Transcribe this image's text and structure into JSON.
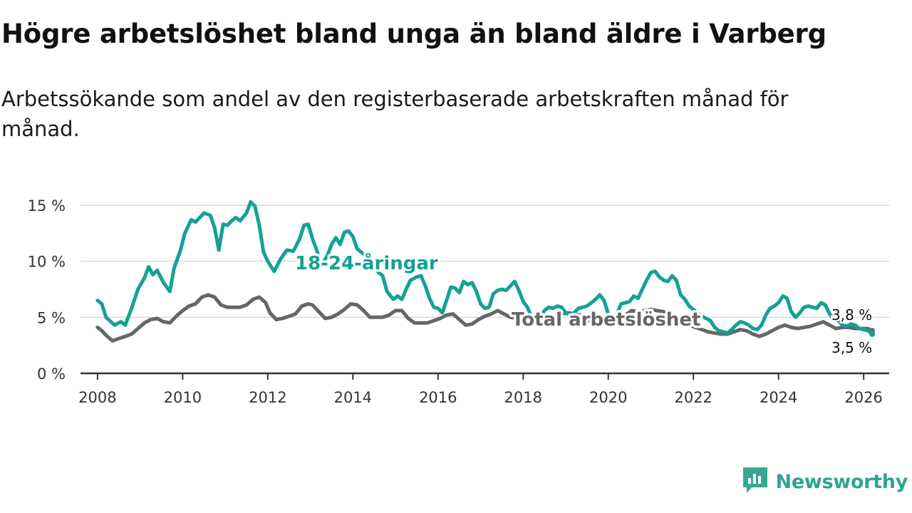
{
  "title": "Högre arbetslöshet bland unga än bland äldre i Varberg",
  "subtitle": "Arbetssökande som andel av den registerbaserade arbetskraften månad för månad.",
  "brand": {
    "name": "Newsworthy",
    "icon": "newsworthy-logo-icon",
    "color": "#3aa795"
  },
  "chart_data": {
    "type": "line",
    "title": "Högre arbetslöshet bland unga än bland äldre i Varberg",
    "xlabel": "",
    "ylabel": "",
    "xlim": [
      2007.6,
      2026.6
    ],
    "ylim": [
      0,
      15
    ],
    "x_ticks": [
      2008,
      2010,
      2012,
      2014,
      2016,
      2018,
      2020,
      2022,
      2024,
      2026
    ],
    "x_tick_labels": [
      "2008",
      "2010",
      "2012",
      "2014",
      "2016",
      "2018",
      "2020",
      "2022",
      "2024",
      "2026"
    ],
    "y_ticks": [
      0,
      5,
      10,
      15
    ],
    "y_tick_labels": [
      "0 %",
      "5 %",
      "10 %",
      "15 %"
    ],
    "grid": true,
    "legend": "none (direct labels)",
    "series": [
      {
        "name": "18-24-åringar",
        "color": "#15a194",
        "end_label": "3,5 %",
        "points": [
          [
            2008.0,
            6.5
          ],
          [
            2008.1,
            6.2
          ],
          [
            2008.2,
            5.0
          ],
          [
            2008.4,
            4.3
          ],
          [
            2008.55,
            4.6
          ],
          [
            2008.65,
            4.3
          ],
          [
            2008.8,
            5.8
          ],
          [
            2008.95,
            7.5
          ],
          [
            2009.1,
            8.5
          ],
          [
            2009.2,
            9.5
          ],
          [
            2009.3,
            8.8
          ],
          [
            2009.4,
            9.2
          ],
          [
            2009.55,
            8.1
          ],
          [
            2009.7,
            7.3
          ],
          [
            2009.8,
            9.4
          ],
          [
            2009.95,
            11.0
          ],
          [
            2010.05,
            12.5
          ],
          [
            2010.2,
            13.7
          ],
          [
            2010.3,
            13.5
          ],
          [
            2010.4,
            13.9
          ],
          [
            2010.5,
            14.3
          ],
          [
            2010.65,
            14.1
          ],
          [
            2010.75,
            13.0
          ],
          [
            2010.85,
            11.0
          ],
          [
            2010.95,
            13.3
          ],
          [
            2011.05,
            13.2
          ],
          [
            2011.15,
            13.6
          ],
          [
            2011.25,
            13.9
          ],
          [
            2011.35,
            13.6
          ],
          [
            2011.5,
            14.3
          ],
          [
            2011.6,
            15.3
          ],
          [
            2011.7,
            14.9
          ],
          [
            2011.8,
            13.2
          ],
          [
            2011.9,
            10.8
          ],
          [
            2012.0,
            10.0
          ],
          [
            2012.15,
            9.1
          ],
          [
            2012.3,
            10.2
          ],
          [
            2012.45,
            11.0
          ],
          [
            2012.6,
            10.9
          ],
          [
            2012.75,
            12.0
          ],
          [
            2012.85,
            13.2
          ],
          [
            2012.95,
            13.3
          ],
          [
            2013.05,
            12.0
          ],
          [
            2013.15,
            11.0
          ],
          [
            2013.25,
            9.6
          ],
          [
            2013.4,
            10.5
          ],
          [
            2013.5,
            11.5
          ],
          [
            2013.6,
            12.1
          ],
          [
            2013.7,
            11.5
          ],
          [
            2013.8,
            12.6
          ],
          [
            2013.9,
            12.7
          ],
          [
            2014.0,
            12.2
          ],
          [
            2014.1,
            11.1
          ],
          [
            2014.2,
            10.8
          ],
          [
            2014.3,
            10.5
          ],
          [
            2014.4,
            9.9
          ],
          [
            2014.5,
            9.6
          ],
          [
            2014.6,
            9.0
          ],
          [
            2014.7,
            8.7
          ],
          [
            2014.8,
            7.3
          ],
          [
            2014.95,
            6.6
          ],
          [
            2015.05,
            6.9
          ],
          [
            2015.15,
            6.6
          ],
          [
            2015.25,
            7.5
          ],
          [
            2015.35,
            8.3
          ],
          [
            2015.5,
            8.6
          ],
          [
            2015.6,
            8.7
          ],
          [
            2015.7,
            7.8
          ],
          [
            2015.8,
            6.7
          ],
          [
            2015.9,
            5.9
          ],
          [
            2016.0,
            5.8
          ],
          [
            2016.1,
            5.4
          ],
          [
            2016.2,
            6.5
          ],
          [
            2016.3,
            7.7
          ],
          [
            2016.4,
            7.6
          ],
          [
            2016.5,
            7.2
          ],
          [
            2016.6,
            8.2
          ],
          [
            2016.7,
            7.9
          ],
          [
            2016.8,
            8.1
          ],
          [
            2016.9,
            7.3
          ],
          [
            2017.0,
            6.2
          ],
          [
            2017.1,
            5.8
          ],
          [
            2017.2,
            5.9
          ],
          [
            2017.3,
            7.1
          ],
          [
            2017.4,
            7.4
          ],
          [
            2017.5,
            7.5
          ],
          [
            2017.6,
            7.4
          ],
          [
            2017.7,
            7.8
          ],
          [
            2017.8,
            8.2
          ],
          [
            2017.9,
            7.4
          ],
          [
            2018.0,
            6.4
          ],
          [
            2018.1,
            5.9
          ],
          [
            2018.2,
            5.0
          ],
          [
            2018.3,
            4.6
          ],
          [
            2018.4,
            5.0
          ],
          [
            2018.5,
            5.6
          ],
          [
            2018.6,
            5.9
          ],
          [
            2018.7,
            5.8
          ],
          [
            2018.8,
            6.0
          ],
          [
            2018.9,
            5.9
          ],
          [
            2019.0,
            5.4
          ],
          [
            2019.1,
            5.2
          ],
          [
            2019.2,
            5.4
          ],
          [
            2019.3,
            5.8
          ],
          [
            2019.4,
            5.9
          ],
          [
            2019.5,
            6.0
          ],
          [
            2019.6,
            6.3
          ],
          [
            2019.7,
            6.6
          ],
          [
            2019.8,
            7.0
          ],
          [
            2019.9,
            6.5
          ],
          [
            2020.0,
            5.3
          ],
          [
            2020.1,
            4.5
          ],
          [
            2020.2,
            5.3
          ],
          [
            2020.3,
            6.2
          ],
          [
            2020.4,
            6.3
          ],
          [
            2020.5,
            6.4
          ],
          [
            2020.6,
            6.9
          ],
          [
            2020.7,
            6.7
          ],
          [
            2020.8,
            7.5
          ],
          [
            2020.9,
            8.3
          ],
          [
            2021.0,
            9.0
          ],
          [
            2021.1,
            9.1
          ],
          [
            2021.2,
            8.6
          ],
          [
            2021.3,
            8.3
          ],
          [
            2021.4,
            8.2
          ],
          [
            2021.5,
            8.7
          ],
          [
            2021.6,
            8.3
          ],
          [
            2021.7,
            7.0
          ],
          [
            2021.8,
            6.6
          ],
          [
            2021.9,
            6.0
          ],
          [
            2022.0,
            5.7
          ],
          [
            2022.2,
            5.1
          ],
          [
            2022.4,
            4.7
          ],
          [
            2022.5,
            4.1
          ],
          [
            2022.6,
            3.8
          ],
          [
            2022.7,
            3.7
          ],
          [
            2022.8,
            3.6
          ],
          [
            2022.9,
            3.9
          ],
          [
            2023.0,
            4.3
          ],
          [
            2023.1,
            4.6
          ],
          [
            2023.2,
            4.5
          ],
          [
            2023.3,
            4.3
          ],
          [
            2023.4,
            4.0
          ],
          [
            2023.5,
            3.9
          ],
          [
            2023.6,
            4.3
          ],
          [
            2023.7,
            5.2
          ],
          [
            2023.8,
            5.8
          ],
          [
            2023.9,
            6.0
          ],
          [
            2024.0,
            6.3
          ],
          [
            2024.1,
            6.9
          ],
          [
            2024.2,
            6.7
          ],
          [
            2024.3,
            5.5
          ],
          [
            2024.4,
            5.0
          ],
          [
            2024.5,
            5.4
          ],
          [
            2024.6,
            5.9
          ],
          [
            2024.7,
            6.0
          ],
          [
            2024.8,
            5.9
          ],
          [
            2024.9,
            5.8
          ],
          [
            2025.0,
            6.3
          ],
          [
            2025.1,
            6.1
          ],
          [
            2025.2,
            5.3
          ],
          [
            2025.3,
            4.8
          ],
          [
            2025.4,
            4.7
          ],
          [
            2025.5,
            4.3
          ],
          [
            2025.6,
            4.2
          ],
          [
            2025.7,
            4.4
          ],
          [
            2025.8,
            4.3
          ],
          [
            2025.9,
            4.0
          ],
          [
            2026.0,
            3.9
          ],
          [
            2026.1,
            3.8
          ],
          [
            2026.2,
            3.5
          ]
        ]
      },
      {
        "name": "Total arbetslöshet",
        "color": "#666669",
        "end_label": "3,8 %",
        "points": [
          [
            2008.0,
            4.1
          ],
          [
            2008.1,
            3.8
          ],
          [
            2008.2,
            3.4
          ],
          [
            2008.35,
            2.9
          ],
          [
            2008.5,
            3.1
          ],
          [
            2008.65,
            3.3
          ],
          [
            2008.8,
            3.5
          ],
          [
            2008.95,
            4.0
          ],
          [
            2009.1,
            4.5
          ],
          [
            2009.25,
            4.8
          ],
          [
            2009.4,
            4.9
          ],
          [
            2009.55,
            4.6
          ],
          [
            2009.7,
            4.5
          ],
          [
            2009.85,
            5.1
          ],
          [
            2010.0,
            5.6
          ],
          [
            2010.15,
            6.0
          ],
          [
            2010.3,
            6.2
          ],
          [
            2010.45,
            6.8
          ],
          [
            2010.6,
            7.0
          ],
          [
            2010.75,
            6.8
          ],
          [
            2010.9,
            6.1
          ],
          [
            2011.05,
            5.9
          ],
          [
            2011.2,
            5.9
          ],
          [
            2011.35,
            5.9
          ],
          [
            2011.5,
            6.1
          ],
          [
            2011.65,
            6.6
          ],
          [
            2011.8,
            6.8
          ],
          [
            2011.95,
            6.3
          ],
          [
            2012.05,
            5.4
          ],
          [
            2012.2,
            4.8
          ],
          [
            2012.35,
            4.9
          ],
          [
            2012.5,
            5.1
          ],
          [
            2012.65,
            5.3
          ],
          [
            2012.8,
            6.0
          ],
          [
            2012.95,
            6.2
          ],
          [
            2013.05,
            6.1
          ],
          [
            2013.2,
            5.5
          ],
          [
            2013.35,
            4.9
          ],
          [
            2013.5,
            5.0
          ],
          [
            2013.65,
            5.3
          ],
          [
            2013.8,
            5.7
          ],
          [
            2013.95,
            6.2
          ],
          [
            2014.1,
            6.1
          ],
          [
            2014.25,
            5.6
          ],
          [
            2014.4,
            5.0
          ],
          [
            2014.55,
            5.0
          ],
          [
            2014.7,
            5.0
          ],
          [
            2014.85,
            5.2
          ],
          [
            2015.0,
            5.6
          ],
          [
            2015.15,
            5.6
          ],
          [
            2015.3,
            4.9
          ],
          [
            2015.45,
            4.5
          ],
          [
            2015.6,
            4.5
          ],
          [
            2015.75,
            4.5
          ],
          [
            2015.9,
            4.7
          ],
          [
            2016.05,
            4.9
          ],
          [
            2016.2,
            5.2
          ],
          [
            2016.35,
            5.3
          ],
          [
            2016.5,
            4.8
          ],
          [
            2016.65,
            4.3
          ],
          [
            2016.8,
            4.4
          ],
          [
            2016.95,
            4.8
          ],
          [
            2017.1,
            5.1
          ],
          [
            2017.25,
            5.3
          ],
          [
            2017.4,
            5.6
          ],
          [
            2017.55,
            5.3
          ],
          [
            2017.7,
            5.0
          ],
          [
            2017.85,
            4.9
          ],
          [
            2018.0,
            4.6
          ],
          [
            2018.15,
            4.4
          ],
          [
            2018.3,
            4.6
          ],
          [
            2018.45,
            4.9
          ],
          [
            2018.6,
            5.0
          ],
          [
            2018.75,
            5.1
          ],
          [
            2018.9,
            5.3
          ],
          [
            2019.05,
            5.4
          ],
          [
            2019.2,
            5.3
          ],
          [
            2019.35,
            5.2
          ],
          [
            2019.5,
            4.8
          ],
          [
            2019.65,
            4.5
          ],
          [
            2019.8,
            4.4
          ],
          [
            2019.95,
            4.5
          ],
          [
            2020.1,
            4.7
          ],
          [
            2020.25,
            5.0
          ],
          [
            2020.4,
            5.2
          ],
          [
            2020.55,
            5.6
          ],
          [
            2020.7,
            5.5
          ],
          [
            2020.85,
            5.6
          ],
          [
            2021.0,
            5.7
          ],
          [
            2021.15,
            5.6
          ],
          [
            2021.3,
            5.5
          ],
          [
            2021.45,
            5.3
          ],
          [
            2021.6,
            5.0
          ],
          [
            2021.75,
            4.6
          ],
          [
            2021.9,
            4.3
          ],
          [
            2022.05,
            4.1
          ],
          [
            2022.2,
            3.9
          ],
          [
            2022.35,
            3.7
          ],
          [
            2022.5,
            3.6
          ],
          [
            2022.65,
            3.5
          ],
          [
            2022.8,
            3.5
          ],
          [
            2022.95,
            3.7
          ],
          [
            2023.1,
            3.9
          ],
          [
            2023.25,
            3.8
          ],
          [
            2023.4,
            3.5
          ],
          [
            2023.55,
            3.3
          ],
          [
            2023.7,
            3.5
          ],
          [
            2023.85,
            3.8
          ],
          [
            2024.0,
            4.1
          ],
          [
            2024.15,
            4.3
          ],
          [
            2024.3,
            4.1
          ],
          [
            2024.45,
            4.0
          ],
          [
            2024.6,
            4.1
          ],
          [
            2024.75,
            4.2
          ],
          [
            2024.9,
            4.4
          ],
          [
            2025.05,
            4.6
          ],
          [
            2025.2,
            4.3
          ],
          [
            2025.35,
            4.0
          ],
          [
            2025.5,
            4.1
          ],
          [
            2025.65,
            4.1
          ],
          [
            2025.8,
            4.0
          ],
          [
            2025.95,
            4.0
          ],
          [
            2026.1,
            4.0
          ],
          [
            2026.2,
            3.8
          ]
        ]
      }
    ]
  }
}
